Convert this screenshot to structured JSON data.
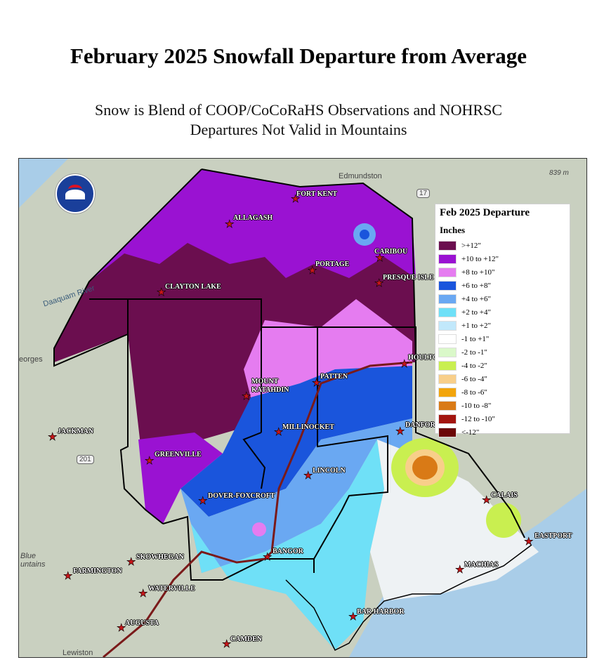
{
  "title": "February 2025 Snowfall Departure from Average",
  "subtitle_lines": [
    "Snow is Blend of COOP/CoCoRaHS Observations and NOHRSC",
    "Departures Not Valid in Mountains"
  ],
  "legend": {
    "title": "Feb 2025 Departure",
    "units": "Inches",
    "items": [
      {
        "label": ">+12\"",
        "color": "#6b0e4f"
      },
      {
        "label": "+10 to +12\"",
        "color": "#9a12d2"
      },
      {
        "label": "+8 to +10\"",
        "color": "#e57cf0"
      },
      {
        "label": "+6 to +8\"",
        "color": "#1a55dc"
      },
      {
        "label": "+4 to +6\"",
        "color": "#6aa8f2"
      },
      {
        "label": "+2 to +4\"",
        "color": "#6fe0f7"
      },
      {
        "label": "+1 to +2\"",
        "color": "#c1e8fb"
      },
      {
        "label": "-1 to +1\"",
        "color": "#ffffff"
      },
      {
        "label": "-2 to -1\"",
        "color": "#daf8c9"
      },
      {
        "label": "-4 to -2\"",
        "color": "#c9ef50"
      },
      {
        "label": "-6 to -4\"",
        "color": "#f8cf8a"
      },
      {
        "label": "-8 to -6\"",
        "color": "#f2a50c"
      },
      {
        "label": "-10 to -8\"",
        "color": "#d97a16"
      },
      {
        "label": "-12 to -10\"",
        "color": "#a3150f"
      },
      {
        "label": "<-12\"",
        "color": "#6b0707"
      }
    ]
  },
  "cities": [
    "FORT KENT",
    "ALLAGASH",
    "CARIBOU",
    "PORTAGE",
    "PRESQUE ISLE",
    "CLAYTON LAKE",
    "HOULTON",
    "MOUNT",
    "KATAHDIN",
    "PATTEN",
    "JACKMAN",
    "MILLINOCKET",
    "DANFORTH",
    "GREENVILLE",
    "LINCOLN",
    "DOVER-FOXCROFT",
    "CALAIS",
    "EASTPORT",
    "BANGOR",
    "MACHIAS",
    "SKOWHEGAN",
    "FARMINGTON",
    "WATERVILLE",
    "AUGUSTA",
    "BAR HARBOR",
    "CAMDEN"
  ],
  "basemap_labels": {
    "edmundston": "Edmundston",
    "elevation": "839 m",
    "daaquam": "Daaquam River",
    "georges": "eorges",
    "blue_mountains_1": "Blue",
    "blue_mountains_2": "untains",
    "lewiston": "Lewiston",
    "route_17": "17",
    "route_201": "201"
  }
}
